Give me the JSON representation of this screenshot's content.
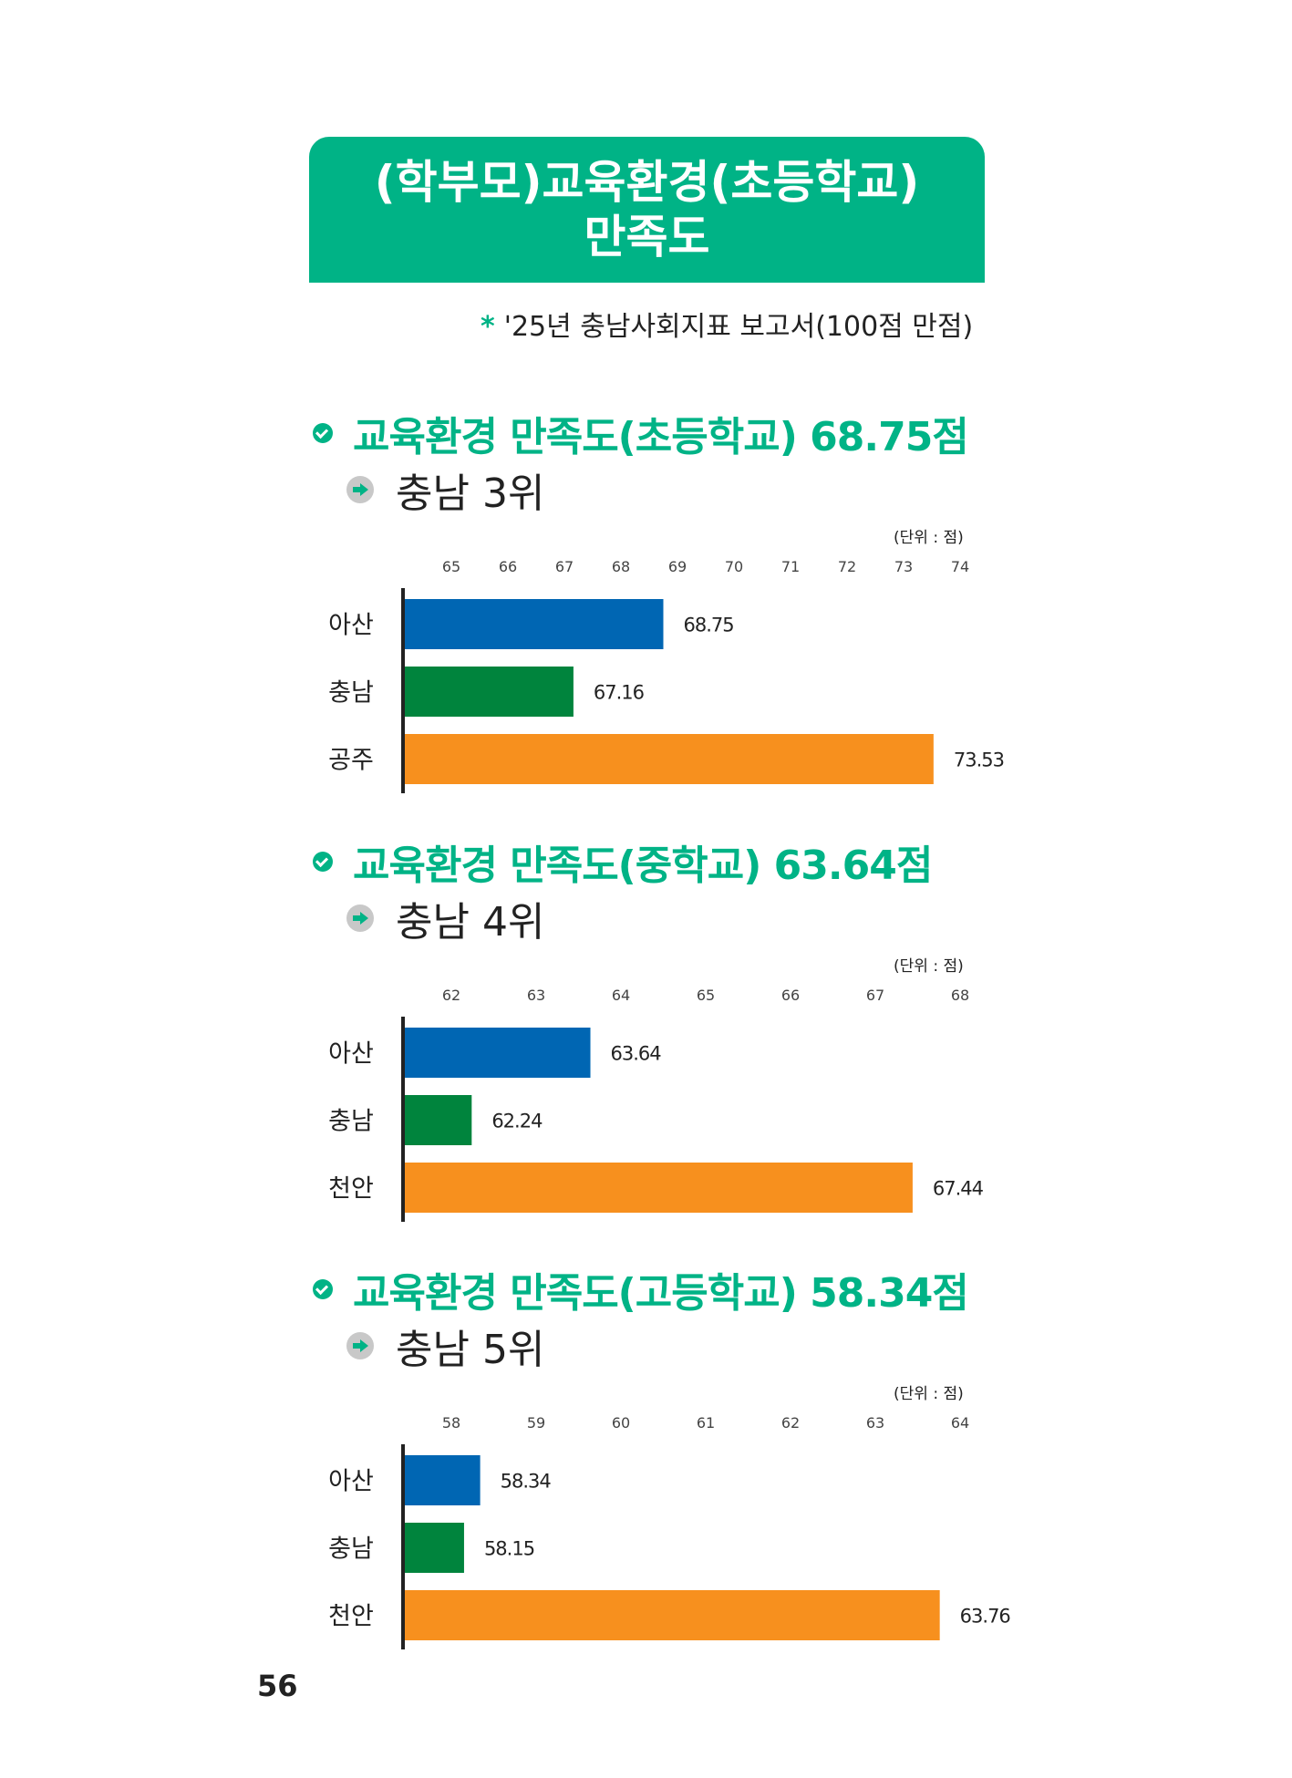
{
  "banner": {
    "line1": "(학부모)교육환경(초등학교)",
    "line2": "만족도"
  },
  "source": {
    "star": "*",
    "text": "'25년 충남사회지표 보고서(100점 만점)"
  },
  "page_number": "56",
  "unit_label": "(단위 : 점)",
  "colors": {
    "accent": "#00b386",
    "blue": "#0066b3",
    "green": "#00843d",
    "orange": "#f7901e"
  },
  "chart_data": [
    {
      "type": "bar",
      "orientation": "horizontal",
      "title": "교육환경 만족도(초등학교) 68.75점",
      "subtitle": "충남 3위",
      "categories": [
        "아산",
        "충남",
        "공주"
      ],
      "values": [
        68.75,
        67.16,
        73.53
      ],
      "value_labels": [
        "68.75",
        "67.16",
        "73.53"
      ],
      "xlim": [
        65,
        74
      ],
      "ticks": [
        "65",
        "66",
        "67",
        "68",
        "69",
        "70",
        "71",
        "72",
        "73",
        "74"
      ]
    },
    {
      "type": "bar",
      "orientation": "horizontal",
      "title": "교육환경 만족도(중학교) 63.64점",
      "subtitle": "충남 4위",
      "categories": [
        "아산",
        "충남",
        "천안"
      ],
      "values": [
        63.64,
        62.24,
        67.44
      ],
      "value_labels": [
        "63.64",
        "62.24",
        "67.44"
      ],
      "xlim": [
        62,
        68
      ],
      "ticks": [
        "62",
        "63",
        "64",
        "65",
        "66",
        "67",
        "68"
      ]
    },
    {
      "type": "bar",
      "orientation": "horizontal",
      "title": "교육환경 만족도(고등학교) 58.34점",
      "subtitle": "충남 5위",
      "categories": [
        "아산",
        "충남",
        "천안"
      ],
      "values": [
        58.34,
        58.15,
        63.76
      ],
      "value_labels": [
        "58.34",
        "58.15",
        "63.76"
      ],
      "xlim": [
        58,
        64
      ],
      "ticks": [
        "58",
        "59",
        "60",
        "61",
        "62",
        "63",
        "64"
      ]
    }
  ]
}
